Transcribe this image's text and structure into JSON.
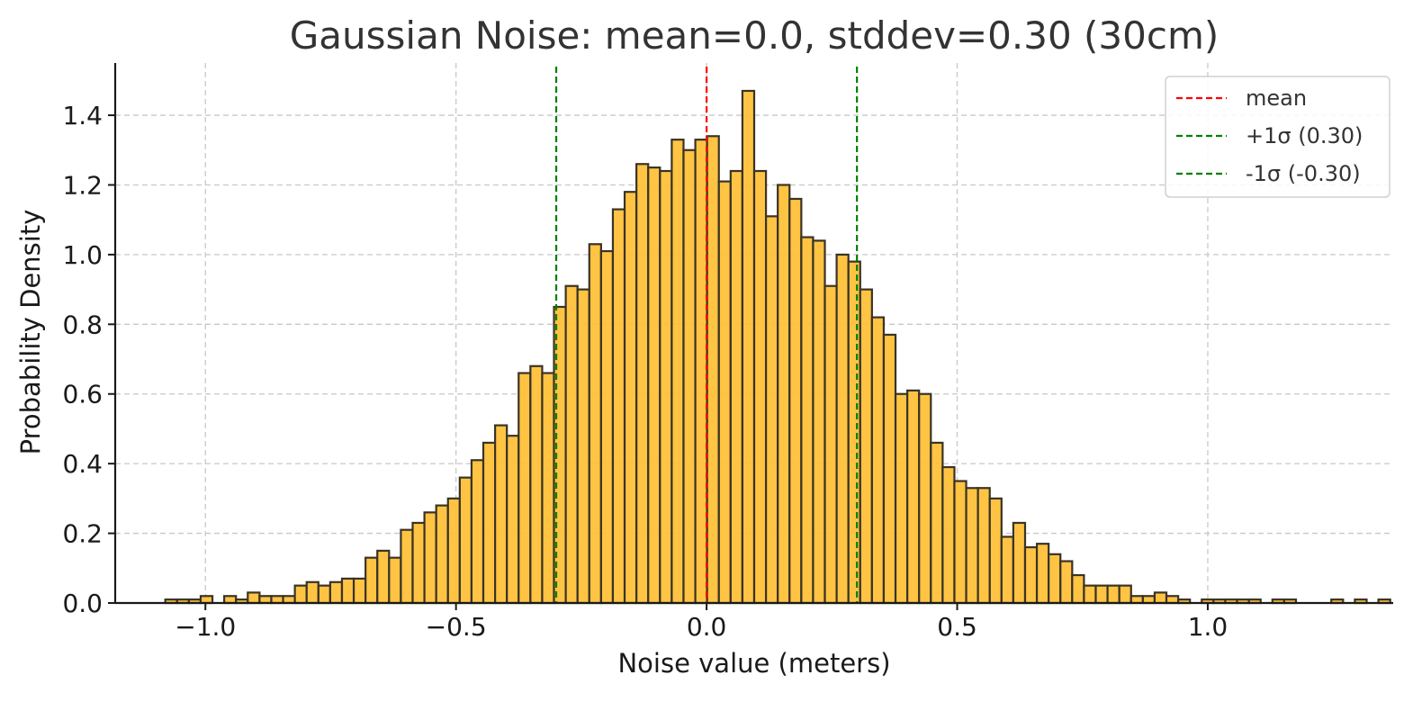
{
  "chart_data": {
    "type": "bar",
    "title": "Gaussian Noise: mean=0.0, stddev=0.30 (30cm)",
    "xlabel": "Noise value (meters)",
    "ylabel": "Probability Density",
    "xlim": [
      -1.18,
      1.37
    ],
    "ylim": [
      0,
      1.55
    ],
    "x_ticks": [
      -1.0,
      -0.5,
      0.0,
      0.5,
      1.0
    ],
    "x_tick_labels": [
      "−1.0",
      "−0.5",
      "0.0",
      "0.5",
      "1.0"
    ],
    "y_ticks": [
      0.0,
      0.2,
      0.4,
      0.6,
      0.8,
      1.0,
      1.2,
      1.4
    ],
    "y_tick_labels": [
      "0.0",
      "0.2",
      "0.4",
      "0.6",
      "0.8",
      "1.0",
      "1.2",
      "1.4"
    ],
    "grid": true,
    "bin_start": -1.08,
    "bin_width": 0.0235,
    "bar_color": "#ffbf33",
    "bar_edge_color": "#3a3326",
    "values": [
      0.01,
      0.01,
      0.01,
      0.02,
      0,
      0.02,
      0.01,
      0.03,
      0.02,
      0.02,
      0.02,
      0.05,
      0.06,
      0.05,
      0.06,
      0.07,
      0.07,
      0.13,
      0.15,
      0.13,
      0.21,
      0.23,
      0.26,
      0.28,
      0.3,
      0.36,
      0.41,
      0.46,
      0.51,
      0.48,
      0.66,
      0.68,
      0.66,
      0.85,
      0.91,
      0.9,
      1.03,
      1.01,
      1.13,
      1.18,
      1.26,
      1.25,
      1.24,
      1.33,
      1.3,
      1.33,
      1.34,
      1.21,
      1.24,
      1.47,
      1.24,
      1.11,
      1.2,
      1.16,
      1.05,
      1.04,
      0.91,
      1.0,
      0.98,
      0.9,
      0.82,
      0.77,
      0.6,
      0.61,
      0.6,
      0.46,
      0.39,
      0.35,
      0.33,
      0.33,
      0.3,
      0.19,
      0.23,
      0.16,
      0.17,
      0.14,
      0.12,
      0.08,
      0.05,
      0.05,
      0.05,
      0.05,
      0.02,
      0.02,
      0.03,
      0.02,
      0.01,
      0,
      0.01,
      0.01,
      0.01,
      0.01,
      0.01,
      0,
      0.01,
      0.01,
      0,
      0,
      0,
      0.01,
      0,
      0.01,
      0,
      0.01
    ],
    "vlines": [
      {
        "x": 0.0,
        "color": "#ff0000",
        "label": "mean"
      },
      {
        "x": 0.3,
        "color": "#008000",
        "label": "+1σ (0.30)"
      },
      {
        "x": -0.3,
        "color": "#008000",
        "label": "-1σ (-0.30)"
      }
    ],
    "legend": {
      "position": "top-right",
      "entries": [
        {
          "label": "mean",
          "color": "#ff0000"
        },
        {
          "label": "+1σ (0.30)",
          "color": "#008000"
        },
        {
          "label": "-1σ (-0.30)",
          "color": "#008000"
        }
      ]
    }
  }
}
